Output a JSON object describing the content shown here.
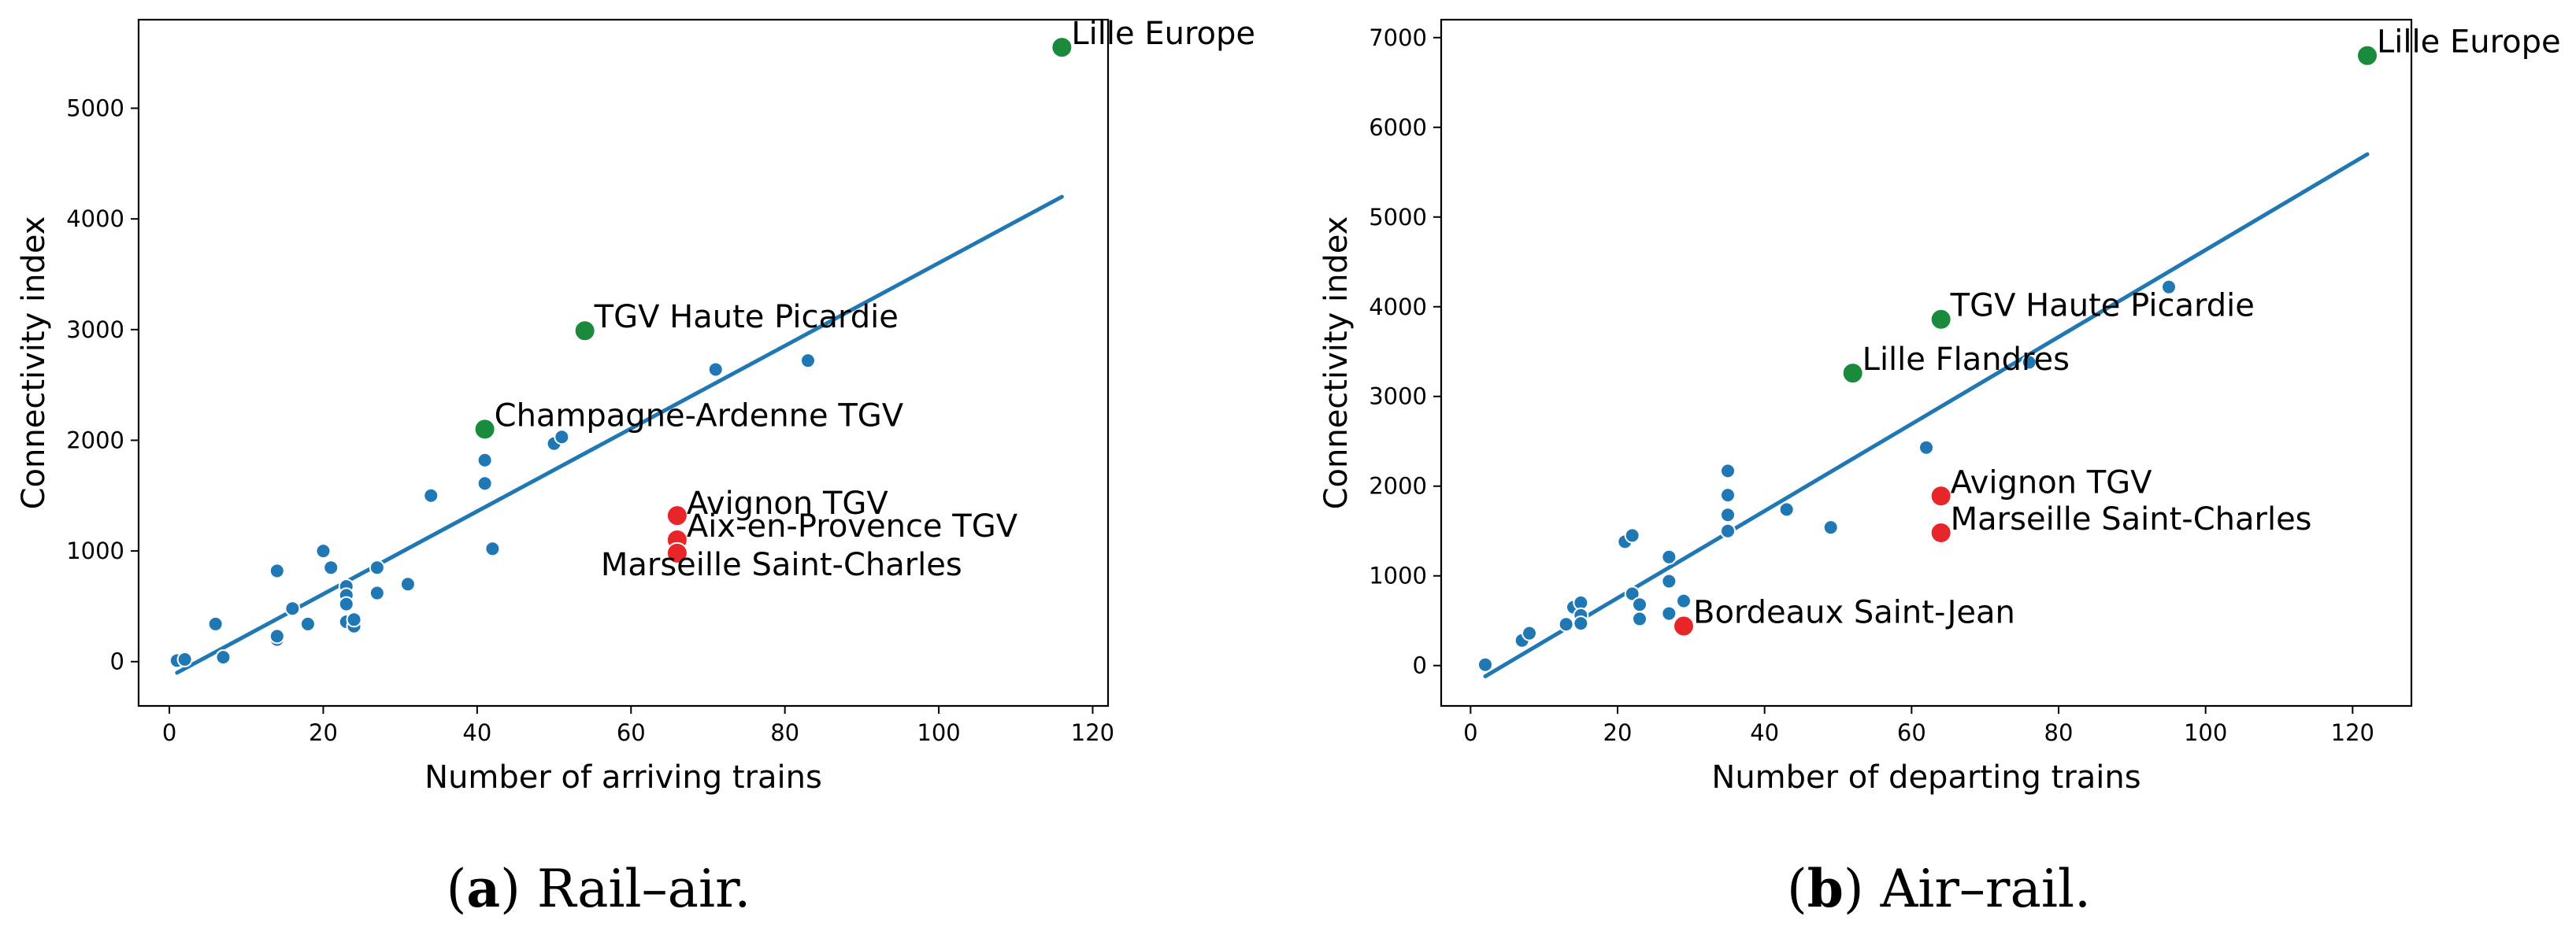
{
  "chart_data": [
    {
      "type": "scatter",
      "caption": {
        "letter": "a",
        "text": "Rail–air."
      },
      "xlabel": "Number of arriving trains",
      "ylabel": "Connectivity index",
      "xlim": [
        -4,
        122
      ],
      "ylim": [
        -400,
        5800
      ],
      "xticks": [
        0,
        20,
        40,
        60,
        80,
        100,
        120
      ],
      "yticks": [
        0,
        1000,
        2000,
        3000,
        4000,
        5000
      ],
      "fit_line": {
        "x": [
          1,
          116
        ],
        "y": [
          -100,
          4200
        ]
      },
      "colors": {
        "points": "#1f77b4",
        "line": "#1f77b4",
        "high": "#1a8a3c",
        "low": "#e8262a"
      },
      "points": [
        [
          1,
          10
        ],
        [
          2,
          20
        ],
        [
          6,
          340
        ],
        [
          7,
          40
        ],
        [
          14,
          820
        ],
        [
          14,
          200
        ],
        [
          14,
          230
        ],
        [
          16,
          480
        ],
        [
          18,
          340
        ],
        [
          20,
          1000
        ],
        [
          21,
          850
        ],
        [
          23,
          680
        ],
        [
          23,
          600
        ],
        [
          23,
          520
        ],
        [
          23,
          360
        ],
        [
          24,
          320
        ],
        [
          24,
          380
        ],
        [
          27,
          850
        ],
        [
          27,
          620
        ],
        [
          31,
          700
        ],
        [
          34,
          1500
        ],
        [
          41,
          1820
        ],
        [
          41,
          1610
        ],
        [
          42,
          1020
        ],
        [
          50,
          1970
        ],
        [
          51,
          2030
        ],
        [
          71,
          2640
        ],
        [
          83,
          2720
        ]
      ],
      "highlight": [
        {
          "x": 116,
          "y": 5550,
          "label": "Lille Europe",
          "group": "high"
        },
        {
          "x": 54,
          "y": 2990,
          "label": "TGV Haute Picardie",
          "group": "high"
        },
        {
          "x": 41,
          "y": 2100,
          "label": "Champagne-Ardenne TGV",
          "group": "high"
        },
        {
          "x": 66,
          "y": 1320,
          "label": "Avignon TGV",
          "group": "low"
        },
        {
          "x": 66,
          "y": 1100,
          "label": "Aix-en-Provence TGV",
          "group": "low"
        },
        {
          "x": 66,
          "y": 980,
          "label": "Marseille Saint-Charles",
          "group": "low"
        }
      ]
    },
    {
      "type": "scatter",
      "caption": {
        "letter": "b",
        "text": "Air–rail."
      },
      "xlabel": "Number of departing trains",
      "ylabel": "Connectivity index",
      "xlim": [
        -4,
        128
      ],
      "ylim": [
        -450,
        7200
      ],
      "xticks": [
        0,
        20,
        40,
        60,
        80,
        100,
        120
      ],
      "yticks": [
        0,
        1000,
        2000,
        3000,
        4000,
        5000,
        6000,
        7000
      ],
      "fit_line": {
        "x": [
          2,
          122
        ],
        "y": [
          -120,
          5700
        ]
      },
      "colors": {
        "points": "#1f77b4",
        "line": "#1f77b4",
        "high": "#1a8a3c",
        "low": "#e8262a"
      },
      "points": [
        [
          2,
          10
        ],
        [
          7,
          280
        ],
        [
          8,
          360
        ],
        [
          13,
          460
        ],
        [
          14,
          650
        ],
        [
          15,
          700
        ],
        [
          15,
          560
        ],
        [
          15,
          470
        ],
        [
          21,
          1380
        ],
        [
          22,
          1450
        ],
        [
          22,
          800
        ],
        [
          23,
          680
        ],
        [
          23,
          520
        ],
        [
          27,
          1210
        ],
        [
          27,
          940
        ],
        [
          27,
          580
        ],
        [
          29,
          720
        ],
        [
          35,
          2170
        ],
        [
          35,
          1900
        ],
        [
          35,
          1680
        ],
        [
          35,
          1500
        ],
        [
          43,
          1740
        ],
        [
          49,
          1540
        ],
        [
          62,
          2430
        ],
        [
          76,
          3380
        ],
        [
          95,
          4220
        ]
      ],
      "highlight": [
        {
          "x": 122,
          "y": 6800,
          "label": "Lille Europe",
          "group": "high"
        },
        {
          "x": 64,
          "y": 3860,
          "label": "TGV Haute Picardie",
          "group": "high"
        },
        {
          "x": 52,
          "y": 3260,
          "label": "Lille Flandres",
          "group": "high"
        },
        {
          "x": 64,
          "y": 1890,
          "label": "Avignon TGV",
          "group": "low"
        },
        {
          "x": 64,
          "y": 1480,
          "label": "Marseille Saint-Charles",
          "group": "low"
        },
        {
          "x": 29,
          "y": 440,
          "label": "Bordeaux Saint-Jean",
          "group": "low"
        }
      ]
    }
  ]
}
